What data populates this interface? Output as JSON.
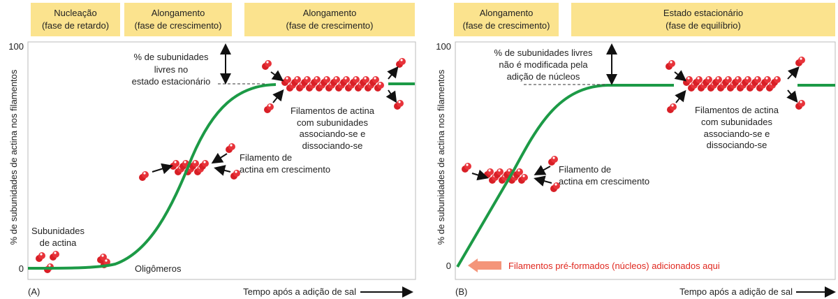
{
  "panel_a": {
    "label": "(A)",
    "phases": [
      [
        "Nucleação",
        "(fase de retardo)"
      ],
      [
        "Alongamento",
        "(fase de crescimento)"
      ],
      [
        "Alongamento",
        "(fase de crescimento)"
      ]
    ],
    "y_axis_label": "% de subunidades de actina nos filamentos",
    "y_ticks": [
      "100",
      "0"
    ],
    "x_axis_label": "Tempo após a adição de sal",
    "subunits_label": [
      "Subunidades",
      "de actina"
    ],
    "oligomers_label": "Oligômeros",
    "growing_label": [
      "Filamento de",
      "actina em crescimento"
    ],
    "free_label": [
      "% de subunidades",
      "livres no",
      "estado estacionário"
    ],
    "steady_label": [
      "Filamentos de actina",
      "com subunidades",
      "associando-se e",
      "dissociando-se"
    ]
  },
  "panel_b": {
    "label": "(B)",
    "phases": [
      [
        "Alongamento",
        "(fase de crescimento)"
      ],
      [
        "Estado estacionário",
        "(fase de equilíbrio)"
      ]
    ],
    "y_axis_label": "% de subunidades de actina nos filamentos",
    "y_ticks": [
      "100",
      "0"
    ],
    "x_axis_label": "Tempo após a adição de sal",
    "free_label": [
      "% de subunidades livres",
      "não é modificada pela",
      "adição de núcleos"
    ],
    "steady_label": [
      "Filamentos de actina",
      "com subunidades",
      "associando-se e",
      "dissociando-se"
    ],
    "growing_label": [
      "Filamento de",
      "actina em crescimento"
    ],
    "nuclei_label": "Filamentos pré-formados (núcleos) adicionados aqui"
  }
}
